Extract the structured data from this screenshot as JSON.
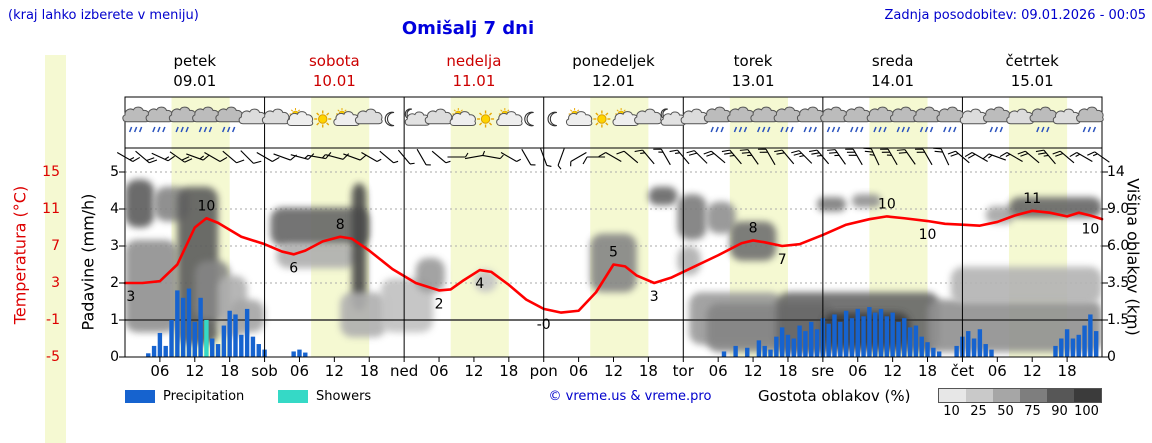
{
  "header": {
    "hint": "(kraj lahko izberete v meniju)",
    "title": "Omišalj 7 dni",
    "updated": "Zadnja posodobitev: 09.01.2026 - 00:05"
  },
  "colors": {
    "accent_blue": "#0000cc",
    "red": "#dd0000",
    "weekend_red": "#cc0000",
    "temp_line": "#ff0000",
    "precip_bar": "#1663cf",
    "showers": "#35d9c6",
    "daylight": "#f5f9d2"
  },
  "axes": {
    "temperature": {
      "label": "Temperatura (°C)",
      "ticks": [
        "15",
        "11",
        "7",
        "3",
        "-1",
        "-5"
      ]
    },
    "precipitation": {
      "label": "Padavine (mm/h)",
      "ticks": [
        "5",
        "4",
        "3",
        "2",
        "1",
        "0"
      ]
    },
    "cloudheight": {
      "label": "Višina oblakov (km)",
      "ticks": [
        "14",
        "9.0",
        "6.0",
        "3.5",
        "1.5",
        "0"
      ]
    }
  },
  "xaxis": {
    "hour_labels": [
      "06",
      "12",
      "18"
    ],
    "day_abbrevs": [
      "sob",
      "ned",
      "pon",
      "tor",
      "sre",
      "čet"
    ]
  },
  "legend": {
    "precipitation_label": "Precipitation",
    "showers_label": "Showers",
    "credit": "© vreme.us & vreme.pro",
    "cloud_density_label": "Gostota oblakov (%)",
    "cloud_scale": [
      "10",
      "25",
      "50",
      "75",
      "90",
      "100"
    ],
    "cloud_scale_colors": [
      "#e7e7e7",
      "#c9c9c9",
      "#a6a6a6",
      "#7e7e7e",
      "#575757",
      "#3b3b3b"
    ]
  },
  "chart_data": {
    "type": "meteogram",
    "days": [
      {
        "name": "petek",
        "date": "09.01",
        "color": "#000000"
      },
      {
        "name": "sobota",
        "date": "10.01",
        "color": "#cc0000"
      },
      {
        "name": "nedelja",
        "date": "11.01",
        "color": "#cc0000"
      },
      {
        "name": "ponedeljek",
        "date": "12.01",
        "color": "#000000"
      },
      {
        "name": "torek",
        "date": "13.01",
        "color": "#000000"
      },
      {
        "name": "sreda",
        "date": "14.01",
        "color": "#000000"
      },
      {
        "name": "četrtek",
        "date": "15.01",
        "color": "#000000"
      }
    ],
    "daylight_hours": [
      8,
      18
    ],
    "temperature": {
      "unit": "°C",
      "range": [
        -5,
        15
      ],
      "points": [
        [
          0,
          3
        ],
        [
          3,
          3
        ],
        [
          6,
          3.2
        ],
        [
          9,
          5
        ],
        [
          12,
          9
        ],
        [
          14,
          10
        ],
        [
          16,
          9.5
        ],
        [
          20,
          8
        ],
        [
          24,
          7.2
        ],
        [
          27,
          6.4
        ],
        [
          29,
          6.1
        ],
        [
          31,
          6.5
        ],
        [
          34,
          7.5
        ],
        [
          37,
          8
        ],
        [
          39,
          7.8
        ],
        [
          42,
          6.5
        ],
        [
          46,
          4.5
        ],
        [
          50,
          3
        ],
        [
          54,
          2.2
        ],
        [
          56,
          2.3
        ],
        [
          58,
          3.2
        ],
        [
          61,
          4.4
        ],
        [
          63,
          4.2
        ],
        [
          66,
          2.8
        ],
        [
          69,
          1.2
        ],
        [
          72,
          0.2
        ],
        [
          75,
          -0.2
        ],
        [
          78,
          0
        ],
        [
          81,
          2
        ],
        [
          84,
          5
        ],
        [
          86,
          4.8
        ],
        [
          88,
          3.8
        ],
        [
          91,
          3
        ],
        [
          94,
          3.6
        ],
        [
          98,
          4.8
        ],
        [
          102,
          6
        ],
        [
          106,
          7.3
        ],
        [
          108,
          7.6
        ],
        [
          110,
          7.4
        ],
        [
          113,
          7
        ],
        [
          116,
          7.2
        ],
        [
          120,
          8.2
        ],
        [
          124,
          9.3
        ],
        [
          128,
          9.9
        ],
        [
          131,
          10.2
        ],
        [
          134,
          10
        ],
        [
          138,
          9.7
        ],
        [
          141,
          9.4
        ],
        [
          144,
          9.3
        ],
        [
          147,
          9.2
        ],
        [
          150,
          9.6
        ],
        [
          153,
          10.3
        ],
        [
          156,
          10.8
        ],
        [
          159,
          10.6
        ],
        [
          162,
          10.2
        ],
        [
          164,
          10.6
        ],
        [
          166,
          10.3
        ],
        [
          168,
          9.9
        ]
      ],
      "labels": [
        {
          "text": "3",
          "h": 1,
          "t": 3.0,
          "pos": "below"
        },
        {
          "text": "10",
          "h": 14,
          "t": 10.0,
          "pos": "above"
        },
        {
          "text": "6",
          "h": 29,
          "t": 6.1,
          "pos": "below"
        },
        {
          "text": "8",
          "h": 37,
          "t": 8.0,
          "pos": "above"
        },
        {
          "text": "2",
          "h": 54,
          "t": 2.2,
          "pos": "below"
        },
        {
          "text": "4",
          "h": 61,
          "t": 4.4,
          "pos": "below"
        },
        {
          "text": "-0",
          "h": 72,
          "t": 0.0,
          "pos": "below"
        },
        {
          "text": "5",
          "h": 84,
          "t": 5.0,
          "pos": "above"
        },
        {
          "text": "3",
          "h": 91,
          "t": 3.0,
          "pos": "below"
        },
        {
          "text": "8",
          "h": 108,
          "t": 7.6,
          "pos": "above"
        },
        {
          "text": "7",
          "h": 113,
          "t": 7.0,
          "pos": "below"
        },
        {
          "text": "10",
          "h": 131,
          "t": 10.2,
          "pos": "above"
        },
        {
          "text": "10",
          "h": 138,
          "t": 9.7,
          "pos": "below"
        },
        {
          "text": "11",
          "h": 156,
          "t": 10.8,
          "pos": "above"
        },
        {
          "text": "10",
          "h": 166,
          "t": 10.3,
          "pos": "below"
        }
      ]
    },
    "precipitation": {
      "unit": "mm/h",
      "range": [
        0,
        5
      ],
      "bars": [
        [
          4,
          0.1
        ],
        [
          5,
          0.3
        ],
        [
          6,
          0.65
        ],
        [
          7,
          0.3
        ],
        [
          8,
          1.0
        ],
        [
          9,
          1.8
        ],
        [
          10,
          1.6
        ],
        [
          11,
          1.85
        ],
        [
          12,
          0.95
        ],
        [
          13,
          1.6
        ],
        [
          15,
          0.5
        ],
        [
          16,
          0.35
        ],
        [
          17,
          0.85
        ],
        [
          18,
          1.25
        ],
        [
          19,
          1.15
        ],
        [
          20,
          0.6
        ],
        [
          21,
          1.3
        ],
        [
          22,
          0.55
        ],
        [
          23,
          0.35
        ],
        [
          24,
          0.2
        ],
        [
          29,
          0.15
        ],
        [
          30,
          0.2
        ],
        [
          31,
          0.12
        ],
        [
          103,
          0.15
        ],
        [
          105,
          0.3
        ],
        [
          107,
          0.25
        ],
        [
          109,
          0.45
        ],
        [
          110,
          0.3
        ],
        [
          111,
          0.2
        ],
        [
          112,
          0.55
        ],
        [
          113,
          0.8
        ],
        [
          114,
          0.6
        ],
        [
          115,
          0.5
        ],
        [
          116,
          0.85
        ],
        [
          117,
          0.7
        ],
        [
          118,
          0.95
        ],
        [
          119,
          0.75
        ],
        [
          120,
          1.05
        ],
        [
          121,
          0.9
        ],
        [
          122,
          1.15
        ],
        [
          123,
          0.95
        ],
        [
          124,
          1.25
        ],
        [
          125,
          1.05
        ],
        [
          126,
          1.3
        ],
        [
          127,
          1.1
        ],
        [
          128,
          1.35
        ],
        [
          129,
          1.2
        ],
        [
          130,
          1.3
        ],
        [
          131,
          1.1
        ],
        [
          132,
          1.2
        ],
        [
          133,
          0.95
        ],
        [
          134,
          1.05
        ],
        [
          135,
          0.8
        ],
        [
          136,
          0.85
        ],
        [
          137,
          0.55
        ],
        [
          138,
          0.4
        ],
        [
          139,
          0.25
        ],
        [
          140,
          0.15
        ],
        [
          143,
          0.3
        ],
        [
          144,
          0.55
        ],
        [
          145,
          0.7
        ],
        [
          146,
          0.5
        ],
        [
          147,
          0.75
        ],
        [
          148,
          0.35
        ],
        [
          149,
          0.2
        ],
        [
          160,
          0.3
        ],
        [
          161,
          0.5
        ],
        [
          162,
          0.75
        ],
        [
          163,
          0.5
        ],
        [
          164,
          0.6
        ],
        [
          165,
          0.85
        ],
        [
          166,
          1.15
        ],
        [
          167,
          0.7
        ]
      ],
      "showers": [
        [
          14,
          1.0
        ]
      ]
    },
    "clouds": {
      "unit": "km",
      "blobs": [
        {
          "h": [
            0,
            5
          ],
          "km": [
            7.5,
            13
          ],
          "d": 70
        },
        {
          "h": [
            0,
            9
          ],
          "km": [
            1,
            6.5
          ],
          "d": 45
        },
        {
          "h": [
            5,
            11
          ],
          "km": [
            8,
            12
          ],
          "d": 50
        },
        {
          "h": [
            9,
            16
          ],
          "km": [
            0.5,
            12
          ],
          "d": 70
        },
        {
          "h": [
            12,
            18
          ],
          "km": [
            1.5,
            5
          ],
          "d": 50
        },
        {
          "h": [
            16,
            21
          ],
          "km": [
            0.8,
            4
          ],
          "d": 30
        },
        {
          "h": [
            18,
            24
          ],
          "km": [
            1,
            2.6
          ],
          "d": 35
        },
        {
          "h": [
            25,
            42
          ],
          "km": [
            6,
            9.2
          ],
          "d": 65
        },
        {
          "h": [
            26,
            40
          ],
          "km": [
            4.5,
            6.2
          ],
          "d": 30
        },
        {
          "h": [
            39,
            41.5
          ],
          "km": [
            2,
            12.5
          ],
          "d": 80
        },
        {
          "h": [
            37,
            45
          ],
          "km": [
            0.8,
            3
          ],
          "d": 30
        },
        {
          "h": [
            44,
            53
          ],
          "km": [
            1,
            3.8
          ],
          "d": 22
        },
        {
          "h": [
            50,
            55
          ],
          "km": [
            3,
            5.2
          ],
          "d": 40
        },
        {
          "h": [
            60,
            64
          ],
          "km": [
            3,
            4.4
          ],
          "d": 20
        },
        {
          "h": [
            80,
            88
          ],
          "km": [
            3,
            7
          ],
          "d": 50
        },
        {
          "h": [
            90,
            95
          ],
          "km": [
            9.5,
            12
          ],
          "d": 65
        },
        {
          "h": [
            95,
            100
          ],
          "km": [
            6.5,
            11
          ],
          "d": 55
        },
        {
          "h": [
            95,
            99
          ],
          "km": [
            4,
            6
          ],
          "d": 30
        },
        {
          "h": [
            100,
            105
          ],
          "km": [
            7,
            10
          ],
          "d": 45
        },
        {
          "h": [
            97,
            113
          ],
          "km": [
            0.5,
            3
          ],
          "d": 40
        },
        {
          "h": [
            104,
            112
          ],
          "km": [
            5,
            8
          ],
          "d": 60
        },
        {
          "h": [
            100,
            122
          ],
          "km": [
            0.2,
            2.4
          ],
          "d": 50
        },
        {
          "h": [
            112,
            140
          ],
          "km": [
            0.2,
            3
          ],
          "d": 65
        },
        {
          "h": [
            120,
            135
          ],
          "km": [
            0.4,
            1.9
          ],
          "d": 85
        },
        {
          "h": [
            119,
            124
          ],
          "km": [
            8.8,
            10.6
          ],
          "d": 55
        },
        {
          "h": [
            125,
            130
          ],
          "km": [
            9.2,
            11
          ],
          "d": 45
        },
        {
          "h": [
            138,
            168
          ],
          "km": [
            0.2,
            2.6
          ],
          "d": 45
        },
        {
          "h": [
            142,
            168
          ],
          "km": [
            2.4,
            4.6
          ],
          "d": 28
        },
        {
          "h": [
            148,
            153
          ],
          "km": [
            7.8,
            9.4
          ],
          "d": 35
        },
        {
          "h": [
            152,
            168
          ],
          "km": [
            8.3,
            10.6
          ],
          "d": 65
        }
      ]
    },
    "icons": {
      "hours": [
        2,
        6,
        10,
        14,
        18,
        22
      ],
      "per_day": [
        [
          "rain",
          "rain",
          "rain",
          "rain",
          "rain",
          "cloud"
        ],
        [
          "cloud",
          "partly",
          "sun",
          "partly",
          "cloud",
          "moon"
        ],
        [
          "moon-cloud",
          "cloud",
          "partly",
          "sun",
          "partly",
          "moon"
        ],
        [
          "moon",
          "partly",
          "sun",
          "partly",
          "cloud",
          "moon-cloud"
        ],
        [
          "cloud",
          "rain",
          "rain",
          "rain",
          "rain",
          "rain"
        ],
        [
          "rain",
          "rain",
          "rain",
          "rain",
          "rain",
          "rain"
        ],
        [
          "cloud",
          "rain",
          "cloud",
          "rain",
          "cloud",
          "rain"
        ]
      ]
    },
    "wind": {
      "step_hours": 3,
      "dirs": [
        300,
        310,
        295,
        305,
        290,
        300,
        310,
        315,
        300,
        290,
        285,
        280,
        285,
        290,
        300,
        310,
        320,
        330,
        310,
        270,
        260,
        280,
        300,
        330,
        340,
        20,
        60,
        90,
        120,
        130,
        140,
        150,
        140,
        135,
        130,
        140,
        145,
        150,
        140,
        135,
        140,
        145,
        150,
        155,
        150,
        145,
        150,
        155,
        130,
        120,
        110,
        120,
        130,
        140,
        130,
        120,
        125
      ],
      "spds": [
        15,
        20,
        15,
        20,
        15,
        10,
        10,
        10,
        10,
        10,
        15,
        15,
        10,
        10,
        5,
        5,
        5,
        5,
        5,
        5,
        5,
        5,
        5,
        5,
        5,
        5,
        5,
        10,
        10,
        10,
        15,
        15,
        15,
        20,
        20,
        25,
        25,
        20,
        20,
        25,
        25,
        25,
        30,
        25,
        25,
        20,
        20,
        20,
        20,
        20,
        15,
        15,
        20,
        25,
        20,
        15,
        15
      ]
    }
  }
}
